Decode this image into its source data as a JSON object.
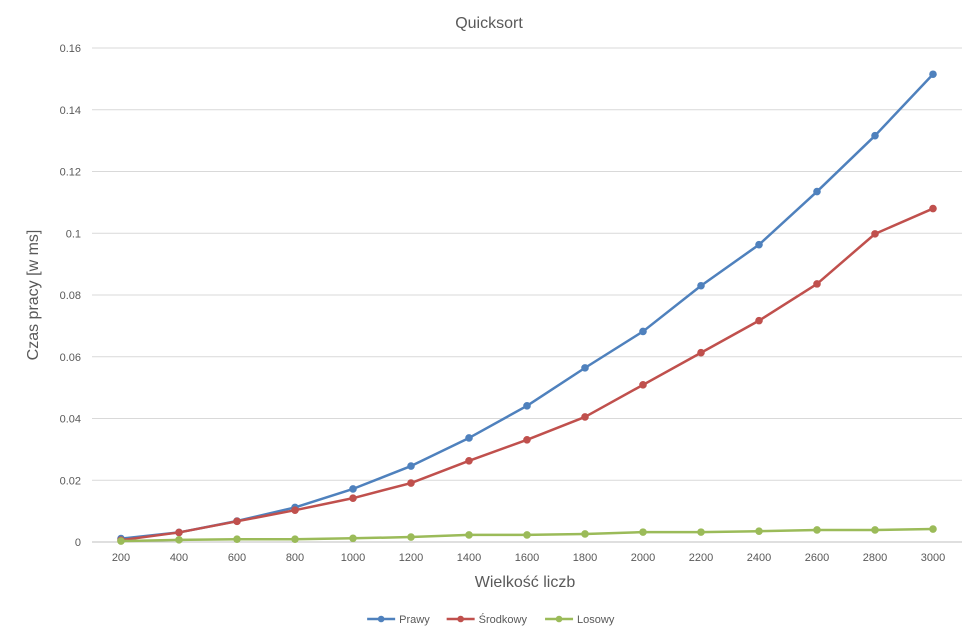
{
  "chart_data": {
    "type": "line",
    "title": "Quicksort",
    "xlabel": "Wielkość liczb",
    "ylabel": "Czas pracy [w ms]",
    "categories": [
      "200",
      "400",
      "600",
      "800",
      "1000",
      "1200",
      "1400",
      "1600",
      "1800",
      "2000",
      "2200",
      "2400",
      "2600",
      "2800",
      "3000"
    ],
    "ylim": [
      0,
      0.16
    ],
    "yticks": [
      0,
      0.02,
      0.04,
      0.06,
      0.08,
      0.1,
      0.12,
      0.14,
      0.16
    ],
    "ytick_labels": [
      "0",
      "0.02",
      "0.04",
      "0.06",
      "0.08",
      "0.1",
      "0.12",
      "0.14",
      "0.16"
    ],
    "grid": true,
    "legend_position": "bottom",
    "series": [
      {
        "name": "Prawy",
        "color": "#4F81BD",
        "values": [
          0.0011,
          0.0031,
          0.0068,
          0.0112,
          0.0172,
          0.0246,
          0.0337,
          0.0441,
          0.0564,
          0.0682,
          0.083,
          0.0963,
          0.1135,
          0.1316,
          0.1515
        ]
      },
      {
        "name": "Środkowy",
        "color": "#C0504D",
        "values": [
          0.0006,
          0.0031,
          0.0067,
          0.0103,
          0.0142,
          0.0191,
          0.0263,
          0.0331,
          0.0405,
          0.0509,
          0.0613,
          0.0717,
          0.0836,
          0.0998,
          0.108
        ]
      },
      {
        "name": "Losowy",
        "color": "#9BBB59",
        "values": [
          0.0003,
          0.0007,
          0.0009,
          0.0009,
          0.0012,
          0.0016,
          0.0023,
          0.0023,
          0.0026,
          0.0032,
          0.0032,
          0.0035,
          0.0039,
          0.0039,
          0.0042
        ]
      }
    ]
  }
}
